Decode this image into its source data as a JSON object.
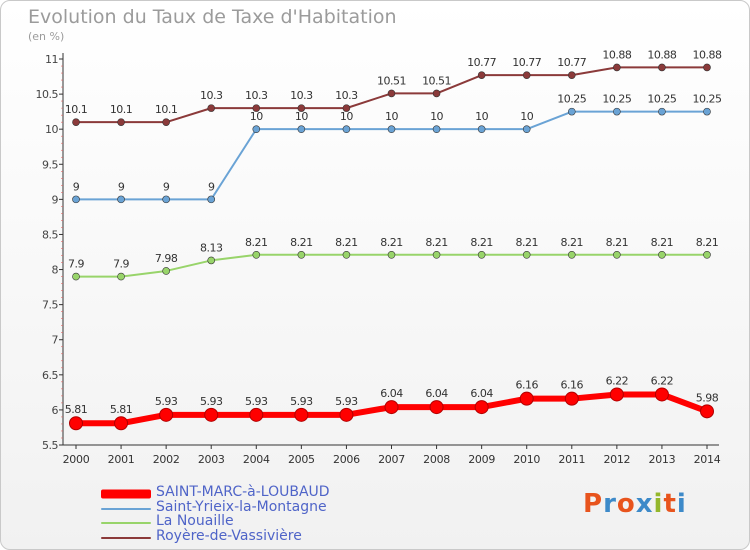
{
  "title": "Evolution du Taux de Taxe d'Habitation",
  "unit": "(en %)",
  "logo": {
    "text": "Proxiti",
    "colors": [
      "#e8541d",
      "#3d8ac9",
      "#e8541d",
      "#3d8ac9",
      "#94b72c",
      "#e8541d",
      "#3d8ac9"
    ]
  },
  "chart_data": {
    "type": "line",
    "title": "Evolution du Taux de Taxe d'Habitation",
    "ylabel": "(en %)",
    "xlabel": "",
    "categories": [
      "2000",
      "2001",
      "2002",
      "2003",
      "2004",
      "2005",
      "2006",
      "2007",
      "2008",
      "2009",
      "2010",
      "2011",
      "2012",
      "2013",
      "2014"
    ],
    "ylim": [
      5.5,
      11
    ],
    "yticks": [
      "5.5",
      "6",
      "6.5",
      "7",
      "7.5",
      "8",
      "8.5",
      "9",
      "9.5",
      "10",
      "10.5",
      "11"
    ],
    "grid": false,
    "legend_position": "bottom-left",
    "series": [
      {
        "name": "SAINT-MARC-à-LOUBAUD",
        "color": "#ff0000",
        "bold": true,
        "values": [
          5.81,
          5.81,
          5.93,
          5.93,
          5.93,
          5.93,
          5.93,
          6.04,
          6.04,
          6.04,
          6.16,
          6.16,
          6.22,
          6.22,
          5.98
        ],
        "labels": [
          "5.81",
          "5.81",
          "5.93",
          "5.93",
          "5.93",
          "5.93",
          "5.93",
          "6.04",
          "6.04",
          "6.04",
          "6.16",
          "6.16",
          "6.22",
          "6.22",
          "5.98"
        ]
      },
      {
        "name": "Saint-Yrieix-la-Montagne",
        "color": "#6aa3d5",
        "bold": false,
        "values": [
          9,
          9,
          9,
          9,
          10,
          10,
          10,
          10,
          10,
          10,
          10,
          10.25,
          10.25,
          10.25,
          10.25
        ],
        "labels": [
          "9",
          "9",
          "9",
          "9",
          "10",
          "10",
          "10",
          "10",
          "10",
          "10",
          "10",
          "10.25",
          "10.25",
          "10.25",
          "10.25"
        ]
      },
      {
        "name": "La Nouaille",
        "color": "#98d46a",
        "bold": false,
        "values": [
          7.9,
          7.9,
          7.98,
          8.13,
          8.21,
          8.21,
          8.21,
          8.21,
          8.21,
          8.21,
          8.21,
          8.21,
          8.21,
          8.21,
          8.21
        ],
        "labels": [
          "7.9",
          "7.9",
          "7.98",
          "8.13",
          "8.21",
          "8.21",
          "8.21",
          "8.21",
          "8.21",
          "8.21",
          "8.21",
          "8.21",
          "8.21",
          "8.21",
          "8.21"
        ]
      },
      {
        "name": "Royère-de-Vassivière",
        "color": "#8b3a3a",
        "bold": false,
        "values": [
          10.1,
          10.1,
          10.1,
          10.3,
          10.3,
          10.3,
          10.3,
          10.51,
          10.51,
          10.77,
          10.77,
          10.77,
          10.88,
          10.88,
          10.88
        ],
        "labels": [
          "10.1",
          "10.1",
          "10.1",
          "10.3",
          "10.3",
          "10.3",
          "10.3",
          "10.51",
          "10.51",
          "10.77",
          "10.77",
          "10.77",
          "10.88",
          "10.88",
          "10.88"
        ]
      }
    ]
  }
}
